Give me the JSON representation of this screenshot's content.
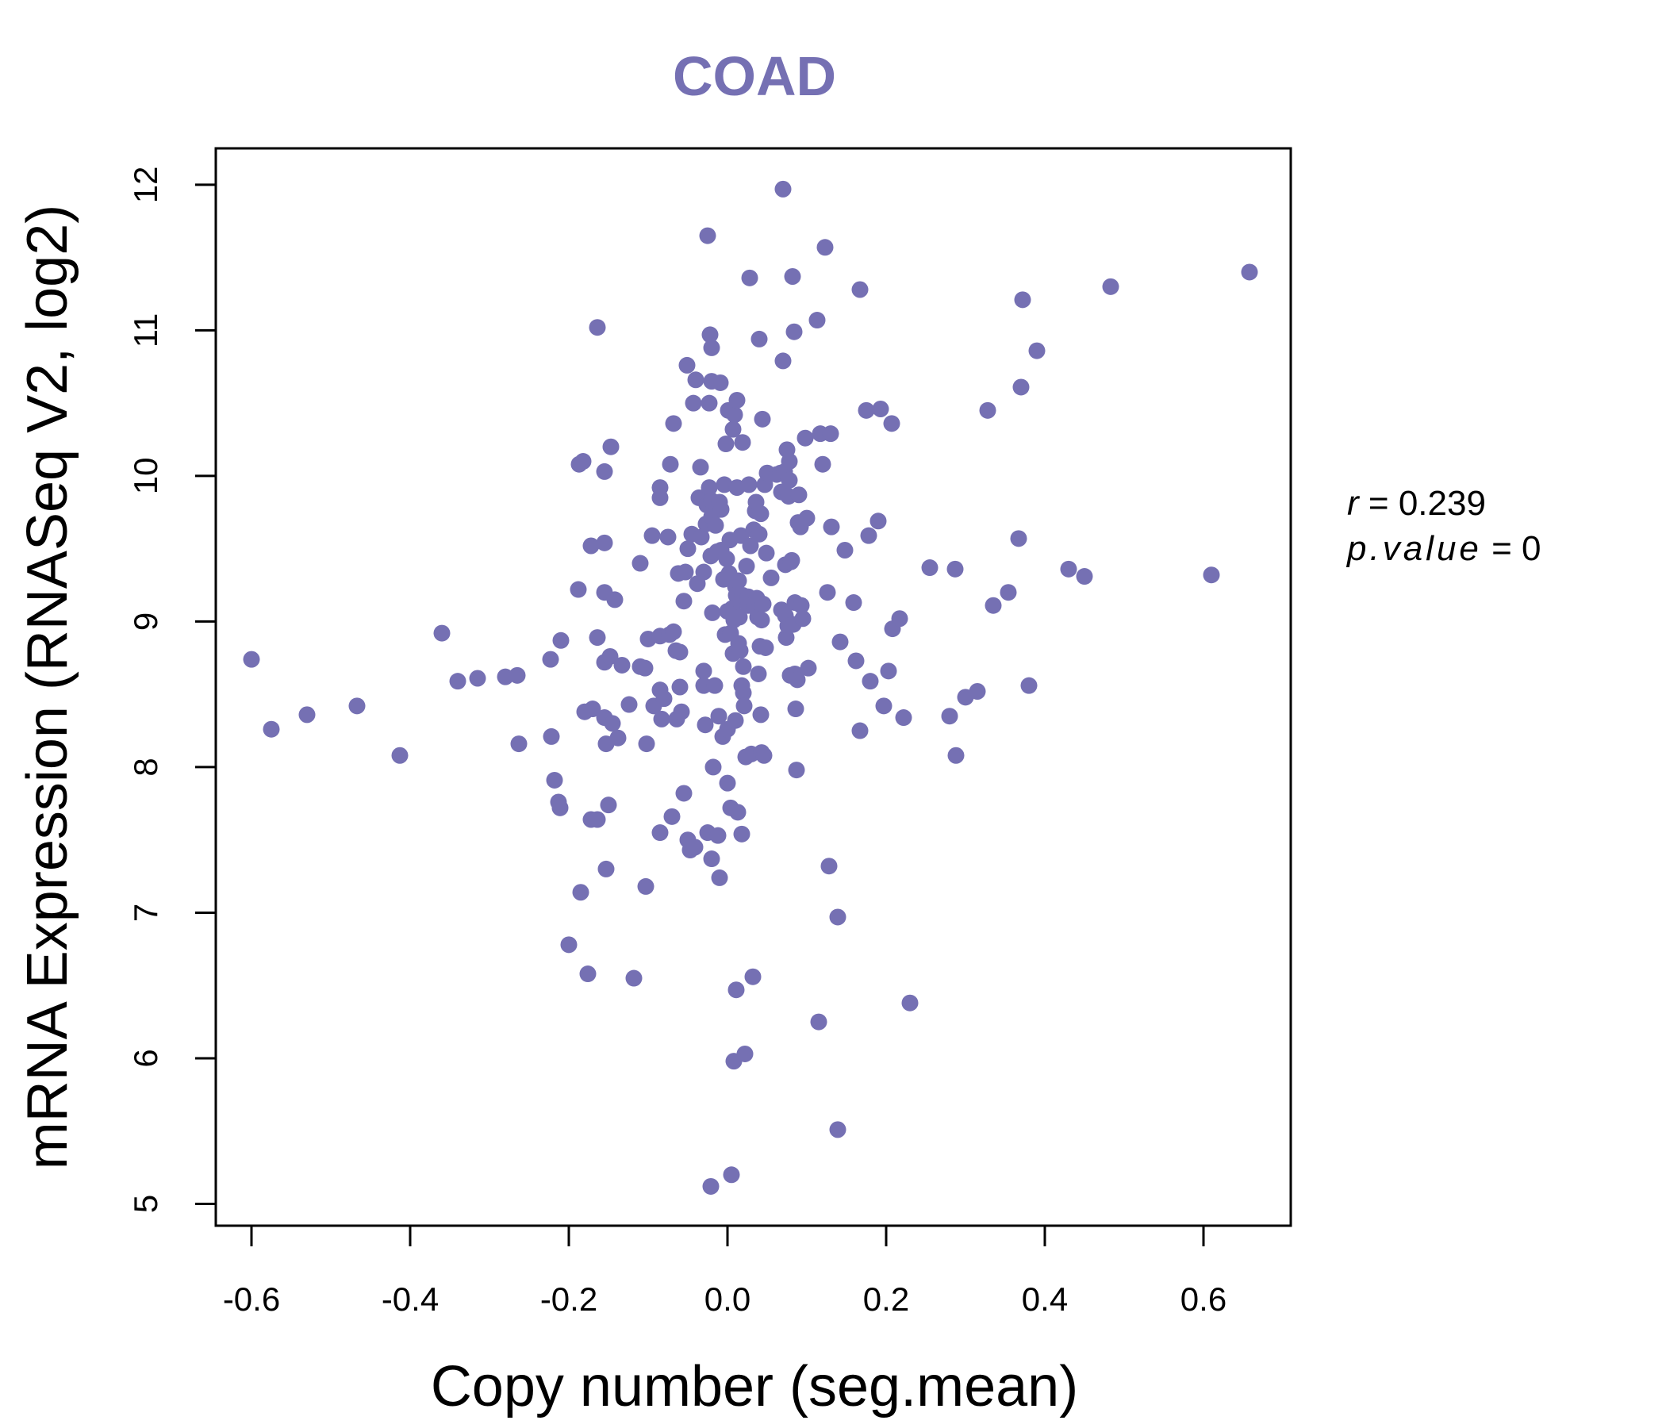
{
  "chart_data": {
    "type": "scatter",
    "title": "COAD",
    "xlabel": "Copy number (seg.mean)",
    "ylabel": "mRNA Expression (RNASeq V2, log2)",
    "xlim": [
      -0.645,
      0.71
    ],
    "ylim": [
      4.85,
      12.25
    ],
    "xticks": [
      -0.6,
      -0.4,
      -0.2,
      0.0,
      0.2,
      0.4,
      0.6
    ],
    "xtick_labels": [
      "-0.6",
      "-0.4",
      "-0.2",
      "0.0",
      "0.2",
      "0.4",
      "0.6"
    ],
    "yticks": [
      5,
      6,
      7,
      8,
      9,
      10,
      11,
      12
    ],
    "ytick_labels": [
      "5",
      "6",
      "7",
      "8",
      "9",
      "10",
      "11",
      "12"
    ],
    "grid": false,
    "stats": {
      "r_label": "r",
      "r_value": "0.239",
      "p_label": "p.value",
      "p_value": "0"
    },
    "series": [
      {
        "color": "#7570b3",
        "points": [
          [
            -0.6,
            8.74
          ],
          [
            -0.575,
            8.26
          ],
          [
            -0.53,
            8.36
          ],
          [
            -0.467,
            8.42
          ],
          [
            -0.413,
            8.08
          ],
          [
            -0.36,
            8.92
          ],
          [
            -0.34,
            8.59
          ],
          [
            -0.315,
            8.61
          ],
          [
            -0.28,
            8.62
          ],
          [
            -0.265,
            8.63
          ],
          [
            -0.263,
            8.16
          ],
          [
            -0.223,
            8.74
          ],
          [
            -0.222,
            8.21
          ],
          [
            -0.218,
            7.91
          ],
          [
            -0.213,
            7.76
          ],
          [
            -0.211,
            7.72
          ],
          [
            -0.21,
            8.87
          ],
          [
            -0.2,
            6.78
          ],
          [
            -0.187,
            10.08
          ],
          [
            -0.188,
            9.22
          ],
          [
            -0.185,
            7.14
          ],
          [
            -0.182,
            10.1
          ],
          [
            -0.18,
            8.38
          ],
          [
            -0.176,
            6.58
          ],
          [
            -0.172,
            9.52
          ],
          [
            -0.17,
            8.4
          ],
          [
            -0.172,
            7.64
          ],
          [
            -0.164,
            7.64
          ],
          [
            -0.164,
            11.02
          ],
          [
            -0.164,
            8.89
          ],
          [
            -0.155,
            10.03
          ],
          [
            -0.155,
            9.54
          ],
          [
            -0.155,
            9.2
          ],
          [
            -0.155,
            8.72
          ],
          [
            -0.155,
            8.34
          ],
          [
            -0.153,
            8.16
          ],
          [
            -0.153,
            7.3
          ],
          [
            -0.15,
            7.74
          ],
          [
            -0.147,
            10.2
          ],
          [
            -0.148,
            8.76
          ],
          [
            -0.145,
            8.3
          ],
          [
            -0.142,
            9.15
          ],
          [
            -0.138,
            8.2
          ],
          [
            -0.133,
            8.7
          ],
          [
            -0.124,
            8.43
          ],
          [
            -0.118,
            6.55
          ],
          [
            -0.11,
            9.4
          ],
          [
            -0.11,
            8.69
          ],
          [
            -0.104,
            8.68
          ],
          [
            -0.103,
            7.18
          ],
          [
            -0.102,
            8.16
          ],
          [
            -0.1,
            8.88
          ],
          [
            -0.095,
            9.59
          ],
          [
            -0.093,
            8.42
          ],
          [
            -0.085,
            9.92
          ],
          [
            -0.085,
            9.85
          ],
          [
            -0.085,
            8.53
          ],
          [
            -0.085,
            8.9
          ],
          [
            -0.085,
            7.55
          ],
          [
            -0.083,
            8.33
          ],
          [
            -0.08,
            8.47
          ],
          [
            -0.075,
            9.58
          ],
          [
            -0.073,
            8.91
          ],
          [
            -0.072,
            10.08
          ],
          [
            -0.07,
            7.66
          ],
          [
            -0.068,
            10.36
          ],
          [
            -0.068,
            8.93
          ],
          [
            -0.065,
            8.8
          ],
          [
            -0.064,
            8.33
          ],
          [
            -0.062,
            9.33
          ],
          [
            -0.06,
            8.55
          ],
          [
            -0.06,
            8.79
          ],
          [
            -0.058,
            8.38
          ],
          [
            -0.055,
            9.14
          ],
          [
            -0.055,
            7.82
          ],
          [
            -0.053,
            9.34
          ],
          [
            -0.051,
            10.76
          ],
          [
            -0.05,
            7.5
          ],
          [
            -0.05,
            9.5
          ],
          [
            -0.047,
            7.43
          ],
          [
            -0.045,
            9.6
          ],
          [
            -0.043,
            10.5
          ],
          [
            -0.041,
            7.45
          ],
          [
            -0.04,
            10.66
          ],
          [
            -0.038,
            9.26
          ],
          [
            -0.036,
            9.85
          ],
          [
            -0.034,
            10.06
          ],
          [
            -0.033,
            9.58
          ],
          [
            -0.03,
            9.34
          ],
          [
            -0.03,
            8.66
          ],
          [
            -0.03,
            8.56
          ],
          [
            -0.028,
            8.29
          ],
          [
            -0.027,
            9.67
          ],
          [
            -0.026,
            9.8
          ],
          [
            -0.025,
            11.65
          ],
          [
            -0.025,
            7.55
          ],
          [
            -0.023,
            9.92
          ],
          [
            -0.023,
            10.5
          ],
          [
            -0.022,
            10.97
          ],
          [
            -0.021,
            9.45
          ],
          [
            -0.021,
            5.12
          ],
          [
            -0.02,
            10.88
          ],
          [
            -0.02,
            10.65
          ],
          [
            -0.02,
            9.83
          ],
          [
            -0.02,
            9.72
          ],
          [
            -0.02,
            7.37
          ],
          [
            -0.019,
            9.06
          ],
          [
            -0.018,
            8.0
          ],
          [
            -0.016,
            8.56
          ],
          [
            -0.015,
            9.66
          ],
          [
            -0.013,
            9.48
          ],
          [
            -0.012,
            7.53
          ],
          [
            -0.011,
            8.35
          ],
          [
            -0.01,
            7.24
          ],
          [
            -0.01,
            9.82
          ],
          [
            -0.009,
            10.64
          ],
          [
            -0.008,
            9.77
          ],
          [
            -0.008,
            9.49
          ],
          [
            -0.006,
            8.21
          ],
          [
            -0.005,
            9.29
          ],
          [
            -0.004,
            9.94
          ],
          [
            -0.003,
            8.91
          ],
          [
            -0.002,
            10.22
          ],
          [
            -0.001,
            9.43
          ],
          [
            0.0,
            9.07
          ],
          [
            0.0,
            8.26
          ],
          [
            0.0,
            7.89
          ],
          [
            0.001,
            10.45
          ],
          [
            0.002,
            9.33
          ],
          [
            0.003,
            9.56
          ],
          [
            0.004,
            8.92
          ],
          [
            0.004,
            7.72
          ],
          [
            0.005,
            5.2
          ],
          [
            0.006,
            9.09
          ],
          [
            0.007,
            10.32
          ],
          [
            0.007,
            8.78
          ],
          [
            0.008,
            9.01
          ],
          [
            0.008,
            5.98
          ],
          [
            0.009,
            10.42
          ],
          [
            0.01,
            9.24
          ],
          [
            0.01,
            8.32
          ],
          [
            0.011,
            9.18
          ],
          [
            0.011,
            6.47
          ],
          [
            0.012,
            10.52
          ],
          [
            0.012,
            9.92
          ],
          [
            0.013,
            9.15
          ],
          [
            0.013,
            7.69
          ],
          [
            0.014,
            9.28
          ],
          [
            0.014,
            8.85
          ],
          [
            0.015,
            9.03
          ],
          [
            0.016,
            8.8
          ],
          [
            0.017,
            9.59
          ],
          [
            0.018,
            8.56
          ],
          [
            0.018,
            7.54
          ],
          [
            0.019,
            10.23
          ],
          [
            0.019,
            9.18
          ],
          [
            0.02,
            8.69
          ],
          [
            0.02,
            8.51
          ],
          [
            0.021,
            8.42
          ],
          [
            0.022,
            6.03
          ],
          [
            0.023,
            8.07
          ],
          [
            0.024,
            9.38
          ],
          [
            0.026,
            9.17
          ],
          [
            0.026,
            9.11
          ],
          [
            0.027,
            9.94
          ],
          [
            0.028,
            11.36
          ],
          [
            0.029,
            9.52
          ],
          [
            0.03,
            8.09
          ],
          [
            0.032,
            6.56
          ],
          [
            0.033,
            9.63
          ],
          [
            0.034,
            9.1
          ],
          [
            0.035,
            9.76
          ],
          [
            0.036,
            9.82
          ],
          [
            0.037,
            9.16
          ],
          [
            0.038,
            9.03
          ],
          [
            0.039,
            8.64
          ],
          [
            0.04,
            10.94
          ],
          [
            0.04,
            9.6
          ],
          [
            0.041,
            8.83
          ],
          [
            0.042,
            9.74
          ],
          [
            0.042,
            8.36
          ],
          [
            0.043,
            9.01
          ],
          [
            0.043,
            8.1
          ],
          [
            0.044,
            10.39
          ],
          [
            0.045,
            9.12
          ],
          [
            0.046,
            8.08
          ],
          [
            0.047,
            9.94
          ],
          [
            0.048,
            8.82
          ],
          [
            0.049,
            9.47
          ],
          [
            0.05,
            10.02
          ],
          [
            0.055,
            9.3
          ],
          [
            0.062,
            10.01
          ],
          [
            0.067,
            10.02
          ],
          [
            0.068,
            9.89
          ],
          [
            0.068,
            9.08
          ],
          [
            0.07,
            11.97
          ],
          [
            0.07,
            10.79
          ],
          [
            0.072,
            10.03
          ],
          [
            0.073,
            9.39
          ],
          [
            0.073,
            9.04
          ],
          [
            0.074,
            8.89
          ],
          [
            0.075,
            10.18
          ],
          [
            0.076,
            8.97
          ],
          [
            0.077,
            9.86
          ],
          [
            0.078,
            10.1
          ],
          [
            0.078,
            9.97
          ],
          [
            0.079,
            8.63
          ],
          [
            0.08,
            9.41
          ],
          [
            0.081,
            9.42
          ],
          [
            0.082,
            11.37
          ],
          [
            0.083,
            8.98
          ],
          [
            0.084,
            10.99
          ],
          [
            0.085,
            9.13
          ],
          [
            0.085,
            8.64
          ],
          [
            0.086,
            8.4
          ],
          [
            0.087,
            7.98
          ],
          [
            0.088,
            8.6
          ],
          [
            0.089,
            9.68
          ],
          [
            0.09,
            9.87
          ],
          [
            0.092,
            9.65
          ],
          [
            0.093,
            9.11
          ],
          [
            0.095,
            9.02
          ],
          [
            0.098,
            10.26
          ],
          [
            0.1,
            9.71
          ],
          [
            0.102,
            8.68
          ],
          [
            0.113,
            11.07
          ],
          [
            0.115,
            6.25
          ],
          [
            0.117,
            10.29
          ],
          [
            0.12,
            10.08
          ],
          [
            0.123,
            11.57
          ],
          [
            0.126,
            9.2
          ],
          [
            0.128,
            7.32
          ],
          [
            0.13,
            10.29
          ],
          [
            0.131,
            9.65
          ],
          [
            0.139,
            6.97
          ],
          [
            0.139,
            5.51
          ],
          [
            0.142,
            8.86
          ],
          [
            0.148,
            9.49
          ],
          [
            0.159,
            9.13
          ],
          [
            0.162,
            8.73
          ],
          [
            0.167,
            11.28
          ],
          [
            0.167,
            8.25
          ],
          [
            0.175,
            10.45
          ],
          [
            0.178,
            9.59
          ],
          [
            0.18,
            8.59
          ],
          [
            0.19,
            9.69
          ],
          [
            0.193,
            10.46
          ],
          [
            0.197,
            8.42
          ],
          [
            0.203,
            8.66
          ],
          [
            0.207,
            10.36
          ],
          [
            0.208,
            8.95
          ],
          [
            0.217,
            9.02
          ],
          [
            0.222,
            8.34
          ],
          [
            0.23,
            6.38
          ],
          [
            0.255,
            9.37
          ],
          [
            0.28,
            8.35
          ],
          [
            0.287,
            9.36
          ],
          [
            0.288,
            8.08
          ],
          [
            0.3,
            8.48
          ],
          [
            0.315,
            8.52
          ],
          [
            0.328,
            10.45
          ],
          [
            0.335,
            9.11
          ],
          [
            0.354,
            9.2
          ],
          [
            0.367,
            9.57
          ],
          [
            0.37,
            10.61
          ],
          [
            0.372,
            11.21
          ],
          [
            0.38,
            8.56
          ],
          [
            0.39,
            10.86
          ],
          [
            0.43,
            9.36
          ],
          [
            0.45,
            9.31
          ],
          [
            0.483,
            11.3
          ],
          [
            0.61,
            9.32
          ],
          [
            0.658,
            11.4
          ]
        ]
      }
    ]
  }
}
